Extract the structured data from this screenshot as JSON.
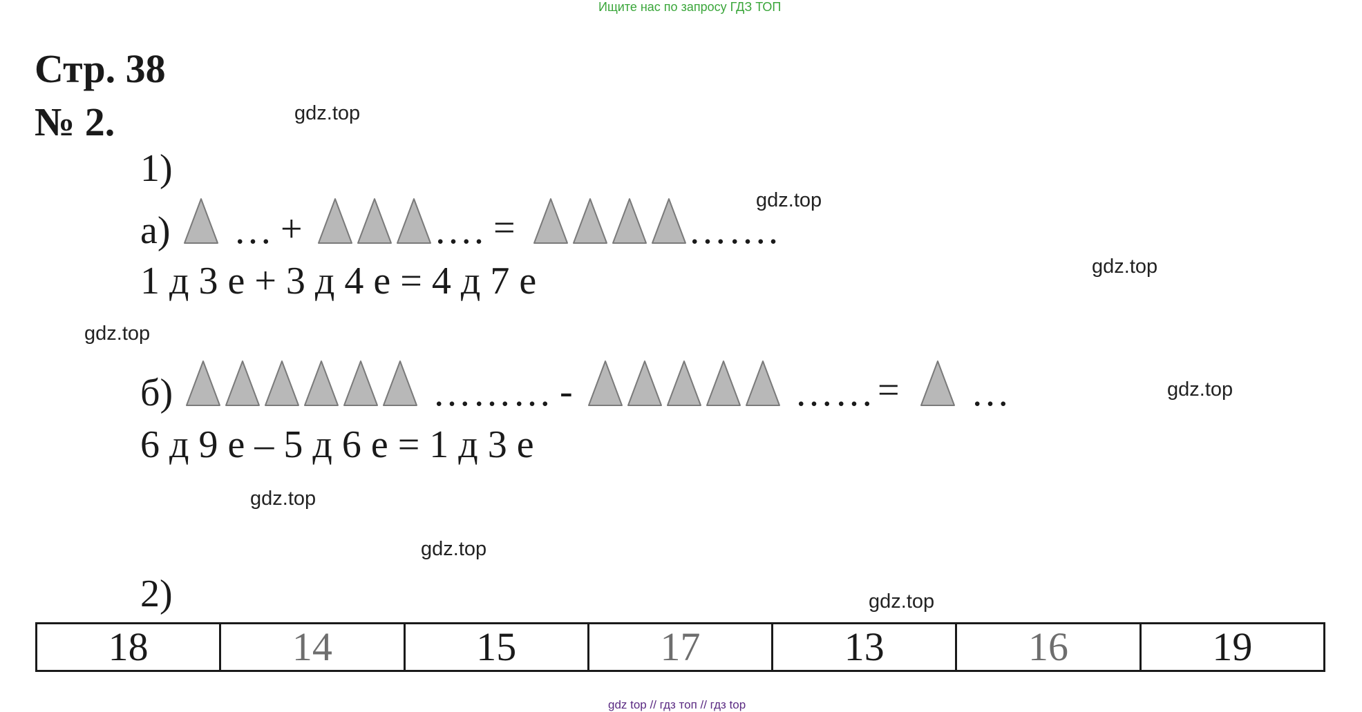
{
  "banner": "Ищите нас по запросу ГДЗ ТОП",
  "page_title": "Стр. 38",
  "exercise_number": "№ 2.",
  "part1": {
    "label": "1)",
    "a": {
      "label": "а)",
      "dots1": "…",
      "plus": "+",
      "dots2": "….",
      "equals": "=",
      "dots3": "…….",
      "triangles_left": 1,
      "triangles_middle": 3,
      "triangles_right": 4,
      "equation": "1 д 3 е + 3 д 4 е = 4 д 7 е"
    },
    "b": {
      "label": "б)",
      "dots1": "………",
      "minus": "-",
      "dots2": "……",
      "equals": "=",
      "dots3": "…",
      "triangles_left": 6,
      "triangles_middle": 5,
      "triangles_right": 1,
      "equation": "6 д 9 е – 5 д 6 е = 1 д 3 е"
    }
  },
  "part2": {
    "label": "2)",
    "numbers": [
      "18",
      "14",
      "15",
      "17",
      "13",
      "16",
      "19"
    ],
    "tones": [
      "dark",
      "gray",
      "dark",
      "gray",
      "dark",
      "gray",
      "dark"
    ]
  },
  "watermarks": [
    "gdz.top",
    "gdz.top",
    "gdz.top",
    "gdz.top",
    "gdz.top",
    "gdz.top",
    "gdz.top",
    "gdz.top"
  ],
  "footer": "gdz top  //  гдз топ  //  гдз top",
  "colors": {
    "triangle_fill": "#b8b8b8",
    "triangle_stroke": "#7a7a7a",
    "banner": "#3aa63a",
    "footer": "#5a2a82"
  }
}
